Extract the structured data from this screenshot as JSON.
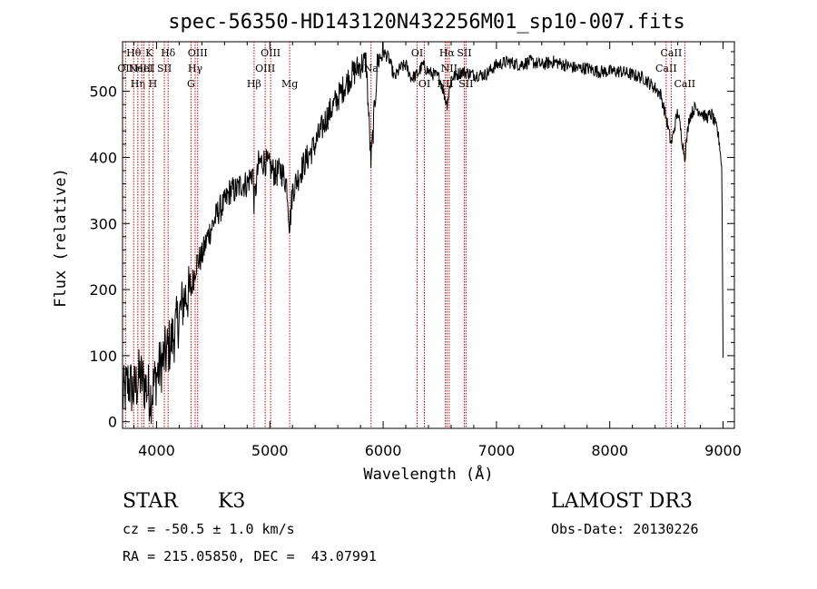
{
  "chart_data": {
    "type": "line",
    "title": "spec-56350-HD143120N432256M01_sp10-007.fits",
    "xlabel": "Wavelength (Å)",
    "ylabel": "Flux (relative)",
    "xlim": [
      3700,
      9100
    ],
    "ylim": [
      -10,
      575
    ],
    "xticks": [
      4000,
      5000,
      6000,
      7000,
      8000,
      9000
    ],
    "yticks": [
      0,
      100,
      200,
      300,
      400,
      500
    ],
    "series": [
      {
        "name": "flux",
        "color": "#000000",
        "x": [
          3700,
          3750,
          3800,
          3850,
          3900,
          3950,
          4000,
          4050,
          4100,
          4150,
          4200,
          4250,
          4300,
          4350,
          4400,
          4450,
          4500,
          4550,
          4600,
          4650,
          4700,
          4750,
          4800,
          4850,
          4861,
          4900,
          4950,
          5000,
          5050,
          5100,
          5150,
          5175,
          5200,
          5250,
          5300,
          5400,
          5500,
          5600,
          5700,
          5800,
          5850,
          5893,
          5950,
          6000,
          6050,
          6100,
          6150,
          6200,
          6250,
          6300,
          6350,
          6400,
          6500,
          6563,
          6600,
          6700,
          6800,
          6900,
          7000,
          7100,
          7200,
          7300,
          7400,
          7500,
          7600,
          7700,
          7800,
          7900,
          8000,
          8100,
          8200,
          8300,
          8400,
          8450,
          8498,
          8542,
          8600,
          8662,
          8700,
          8750,
          8800,
          8850,
          8900,
          8950,
          8970,
          8990,
          9000
        ],
        "y": [
          35,
          60,
          45,
          70,
          55,
          40,
          70,
          90,
          110,
          130,
          160,
          190,
          195,
          240,
          250,
          280,
          300,
          320,
          330,
          350,
          350,
          360,
          360,
          380,
          330,
          390,
          395,
          385,
          375,
          380,
          360,
          295,
          350,
          370,
          390,
          420,
          460,
          490,
          520,
          540,
          545,
          390,
          545,
          560,
          550,
          520,
          535,
          540,
          520,
          525,
          540,
          530,
          520,
          480,
          520,
          530,
          525,
          525,
          540,
          545,
          540,
          545,
          540,
          545,
          540,
          535,
          535,
          530,
          530,
          530,
          525,
          520,
          505,
          495,
          460,
          420,
          470,
          400,
          460,
          475,
          470,
          460,
          465,
          440,
          420,
          380,
          100
        ]
      }
    ],
    "line_markers": [
      {
        "w": 3726,
        "label": "OII",
        "row": 1
      },
      {
        "w": 3798,
        "label": "Hθ",
        "row": 0
      },
      {
        "w": 3835,
        "label": "Hη",
        "row": 2
      },
      {
        "w": 3869,
        "label": "NeIII",
        "row": 1
      },
      {
        "w": 3889,
        "label": "HeI",
        "row": 1
      },
      {
        "w": 3934,
        "label": "K",
        "row": 0
      },
      {
        "w": 3968,
        "label": "H",
        "row": 2
      },
      {
        "w": 4069,
        "label": "SII",
        "row": 1
      },
      {
        "w": 4102,
        "label": "Hδ",
        "row": 0
      },
      {
        "w": 4304,
        "label": "G",
        "row": 2
      },
      {
        "w": 4341,
        "label": "Hγ",
        "row": 1
      },
      {
        "w": 4363,
        "label": "OIII",
        "row": 0
      },
      {
        "w": 4861,
        "label": "Hβ",
        "row": 2
      },
      {
        "w": 4959,
        "label": "OIII",
        "row": 1
      },
      {
        "w": 5007,
        "label": "OIII",
        "row": 0
      },
      {
        "w": 5175,
        "label": "Mg",
        "row": 2
      },
      {
        "w": 5893,
        "label": "Na",
        "row": 1
      },
      {
        "w": 6300,
        "label": "OI",
        "row": 0
      },
      {
        "w": 6364,
        "label": "OI",
        "row": 2
      },
      {
        "w": 6548,
        "label": "NII",
        "row": 2
      },
      {
        "w": 6563,
        "label": "Hα",
        "row": 0
      },
      {
        "w": 6583,
        "label": "NII",
        "row": 1
      },
      {
        "w": 6716,
        "label": "SII",
        "row": 0
      },
      {
        "w": 6731,
        "label": "SII",
        "row": 2
      },
      {
        "w": 8498,
        "label": "CaII",
        "row": 1
      },
      {
        "w": 8542,
        "label": "CaII",
        "row": 0
      },
      {
        "w": 8662,
        "label": "CaII",
        "row": 2
      }
    ]
  },
  "info": {
    "object_class": "STAR",
    "subclass": "K3",
    "survey": "LAMOST DR3",
    "cz": "cz = -50.5 ± 1.0 km/s",
    "obs_date": "Obs-Date: 20130226",
    "coords": "RA = 215.05850, DEC =  43.07991"
  },
  "colors": {
    "marker": "#cc0000",
    "line": "#000000"
  }
}
